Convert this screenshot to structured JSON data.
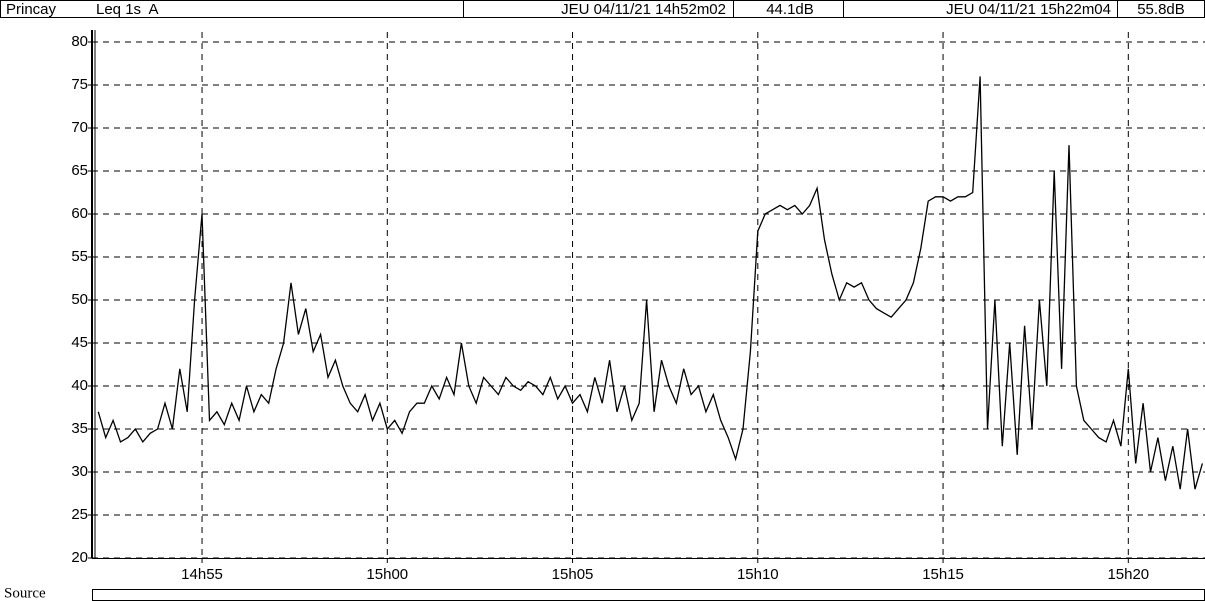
{
  "header": {
    "station": "Princay",
    "measure": "Leq 1s  A",
    "start_time": "JEU 04/11/21 14h52m02",
    "start_level": "44.1dB",
    "end_time": "JEU 04/11/21 15h22m04",
    "end_level": "55.8dB"
  },
  "footer": {
    "label": "Source"
  },
  "chart_data": {
    "type": "line",
    "color": "#000000",
    "grid": true,
    "xlim": [
      892.03,
      922.07
    ],
    "xticks": [
      {
        "value": 895,
        "label": "14h55"
      },
      {
        "value": 900,
        "label": "15h00"
      },
      {
        "value": 905,
        "label": "15h05"
      },
      {
        "value": 910,
        "label": "15h10"
      },
      {
        "value": 915,
        "label": "15h15"
      },
      {
        "value": 920,
        "label": "15h20"
      }
    ],
    "ylim": [
      20,
      80
    ],
    "yticks": [
      20,
      25,
      30,
      35,
      40,
      45,
      50,
      55,
      60,
      65,
      70,
      75,
      80
    ],
    "x": [
      892.2,
      892.4,
      892.6,
      892.8,
      893.0,
      893.2,
      893.4,
      893.6,
      893.8,
      894.0,
      894.2,
      894.4,
      894.6,
      894.8,
      895.0,
      895.2,
      895.4,
      895.6,
      895.8,
      896.0,
      896.2,
      896.4,
      896.6,
      896.8,
      897.0,
      897.2,
      897.4,
      897.6,
      897.8,
      898.0,
      898.2,
      898.4,
      898.6,
      898.8,
      899.0,
      899.2,
      899.4,
      899.6,
      899.8,
      900.0,
      900.2,
      900.4,
      900.6,
      900.8,
      901.0,
      901.2,
      901.4,
      901.6,
      901.8,
      902.0,
      902.2,
      902.4,
      902.6,
      902.8,
      903.0,
      903.2,
      903.4,
      903.6,
      903.8,
      904.0,
      904.2,
      904.4,
      904.6,
      904.8,
      905.0,
      905.2,
      905.4,
      905.6,
      905.8,
      906.0,
      906.2,
      906.4,
      906.6,
      906.8,
      907.0,
      907.2,
      907.4,
      907.6,
      907.8,
      908.0,
      908.2,
      908.4,
      908.6,
      908.8,
      909.0,
      909.2,
      909.4,
      909.6,
      909.8,
      910.0,
      910.2,
      910.4,
      910.6,
      910.8,
      911.0,
      911.2,
      911.4,
      911.6,
      911.8,
      912.0,
      912.2,
      912.4,
      912.6,
      912.8,
      913.0,
      913.2,
      913.4,
      913.6,
      913.8,
      914.0,
      914.2,
      914.4,
      914.6,
      914.8,
      915.0,
      915.2,
      915.4,
      915.6,
      915.8,
      916.0,
      916.2,
      916.4,
      916.6,
      916.8,
      917.0,
      917.2,
      917.4,
      917.6,
      917.8,
      918.0,
      918.2,
      918.4,
      918.6,
      918.8,
      919.0,
      919.2,
      919.4,
      919.6,
      919.8,
      920.0,
      920.2,
      920.4,
      920.6,
      920.8,
      921.0,
      921.2,
      921.4,
      921.6,
      921.8,
      922.0
    ],
    "values": [
      37,
      34,
      36,
      33.5,
      34,
      35,
      33.5,
      34.5,
      35,
      38,
      35,
      42,
      37,
      50,
      60,
      36,
      37,
      35.5,
      38,
      36,
      40,
      37,
      39,
      38,
      42,
      45,
      52,
      46,
      49,
      44,
      46,
      41,
      43,
      40,
      38,
      37,
      39,
      36,
      38,
      35,
      36,
      34.5,
      37,
      38,
      38,
      40,
      38.5,
      41,
      39,
      45,
      40,
      38,
      41,
      40,
      39,
      41,
      40,
      39.5,
      40.5,
      40,
      39,
      41,
      38.5,
      40,
      38,
      39,
      37,
      41,
      38,
      43,
      37,
      40,
      36,
      38,
      50,
      37,
      43,
      40,
      38,
      42,
      39,
      40,
      37,
      39,
      36,
      34,
      31.5,
      35,
      44,
      58,
      60,
      60.5,
      61,
      60.5,
      61,
      60,
      61,
      63,
      57,
      53,
      50,
      52,
      51.5,
      52,
      50,
      49,
      48.5,
      48,
      49,
      50,
      52,
      56,
      61.5,
      62,
      62,
      61.5,
      62,
      62,
      62.5,
      76,
      35,
      50,
      33,
      45,
      32,
      47,
      35,
      50,
      40,
      65,
      42,
      68,
      40,
      36,
      35,
      34,
      33.5,
      36,
      33,
      42,
      31,
      38,
      30,
      34,
      29,
      33,
      28,
      35,
      28,
      31
    ]
  }
}
